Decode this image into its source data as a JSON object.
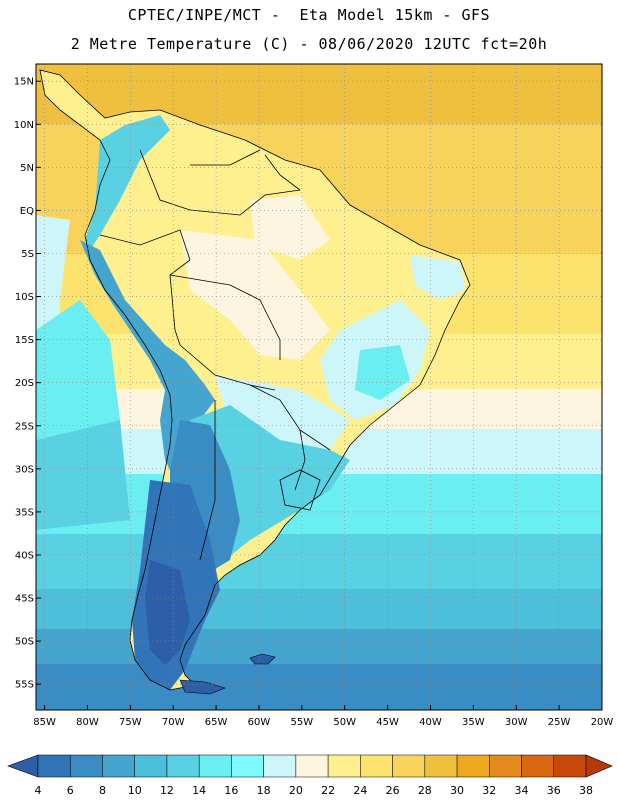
{
  "title": {
    "line1": "CPTEC/INPE/MCT -  Eta Model 15km - GFS",
    "line2": "2 Metre Temperature (C) - 08/06/2020 12UTC fct=20h"
  },
  "map": {
    "lon_range": [
      -86,
      -20
    ],
    "lat_range": [
      -58,
      17
    ],
    "lat_ticks": [
      {
        "value": 15,
        "label": "15N"
      },
      {
        "value": 10,
        "label": "10N"
      },
      {
        "value": 5,
        "label": "5N"
      },
      {
        "value": 0,
        "label": "EQ"
      },
      {
        "value": -5,
        "label": "5S"
      },
      {
        "value": -10,
        "label": "10S"
      },
      {
        "value": -15,
        "label": "15S"
      },
      {
        "value": -20,
        "label": "20S"
      },
      {
        "value": -25,
        "label": "25S"
      },
      {
        "value": -30,
        "label": "30S"
      },
      {
        "value": -35,
        "label": "35S"
      },
      {
        "value": -40,
        "label": "40S"
      },
      {
        "value": -45,
        "label": "45S"
      },
      {
        "value": -50,
        "label": "50S"
      },
      {
        "value": -55,
        "label": "55S"
      }
    ],
    "lon_ticks": [
      {
        "value": -85,
        "label": "85W"
      },
      {
        "value": -80,
        "label": "80W"
      },
      {
        "value": -75,
        "label": "75W"
      },
      {
        "value": -70,
        "label": "70W"
      },
      {
        "value": -65,
        "label": "65W"
      },
      {
        "value": -60,
        "label": "60W"
      },
      {
        "value": -55,
        "label": "55W"
      },
      {
        "value": -50,
        "label": "50W"
      },
      {
        "value": -45,
        "label": "45W"
      },
      {
        "value": -40,
        "label": "40W"
      },
      {
        "value": -35,
        "label": "35W"
      },
      {
        "value": -30,
        "label": "30W"
      },
      {
        "value": -25,
        "label": "25W"
      },
      {
        "value": -20,
        "label": "20W"
      }
    ],
    "gridlines": true
  },
  "colorbar": {
    "labels": [
      "4",
      "6",
      "8",
      "10",
      "12",
      "14",
      "16",
      "18",
      "20",
      "22",
      "24",
      "26",
      "28",
      "30",
      "32",
      "34",
      "36",
      "38"
    ],
    "colors": [
      "#2d5fa8",
      "#3174b7",
      "#3a8dc4",
      "#44a6cf",
      "#4cbfdb",
      "#58d2e3",
      "#6beef2",
      "#7ffaff",
      "#cdf6fb",
      "#fdf5df",
      "#fef08f",
      "#fbe36d",
      "#f7d35b",
      "#efc03e",
      "#eca81e",
      "#e58a1d",
      "#da6712",
      "#c9490a",
      "#b53a06"
    ]
  }
}
